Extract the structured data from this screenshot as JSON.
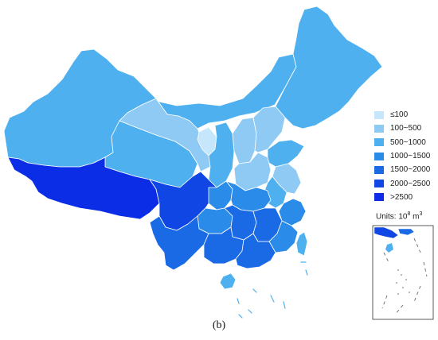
{
  "legend": {
    "classes": [
      {
        "label": "≤100",
        "color": "#c6e6fb"
      },
      {
        "label": "100~500",
        "color": "#8fcaf5"
      },
      {
        "label": "500~1000",
        "color": "#4fb0ef"
      },
      {
        "label": "1000~1500",
        "color": "#2b8be8"
      },
      {
        "label": "1500~2000",
        "color": "#1a6ae6"
      },
      {
        "label": "2000~2500",
        "color": "#1046e3"
      },
      {
        "label": ">2500",
        "color": "#0b2de6"
      }
    ],
    "units_prefix": "Units: 10",
    "units_exp": "8",
    "units_suffix": " m",
    "units_exp2": "3"
  },
  "caption": "(b)",
  "regions": [
    {
      "id": "northwest",
      "class": "500~1000"
    },
    {
      "id": "inner-mongolia",
      "class": "500~1000"
    },
    {
      "id": "northeast",
      "class": "500~1000"
    },
    {
      "id": "qinghai",
      "class": "500~1000"
    },
    {
      "id": "gansu",
      "class": "100~500"
    },
    {
      "id": "ningxia",
      "class": "≤100"
    },
    {
      "id": "shanxi",
      "class": "100~500"
    },
    {
      "id": "beijing",
      "class": "≤100"
    },
    {
      "id": "hebei",
      "class": "100~500"
    },
    {
      "id": "shandong",
      "class": "500~1000"
    },
    {
      "id": "henan",
      "class": "100~500"
    },
    {
      "id": "jiangsu",
      "class": "100~500"
    },
    {
      "id": "shaanxi",
      "class": "500~1000"
    },
    {
      "id": "tibet",
      "class": ">2500"
    },
    {
      "id": "sichuan",
      "class": "2000~2500"
    },
    {
      "id": "chongqing",
      "class": "1000~1500"
    },
    {
      "id": "hubei",
      "class": "1000~1500"
    },
    {
      "id": "anhui",
      "class": "500~1000"
    },
    {
      "id": "zhejiang",
      "class": "1000~1500"
    },
    {
      "id": "yunnan",
      "class": "1500~2000"
    },
    {
      "id": "guizhou",
      "class": "1000~1500"
    },
    {
      "id": "hunan",
      "class": "1500~2000"
    },
    {
      "id": "jiangxi",
      "class": "1500~2000"
    },
    {
      "id": "fujian",
      "class": "1000~1500"
    },
    {
      "id": "guangxi",
      "class": "1500~2000"
    },
    {
      "id": "guangdong",
      "class": "1500~2000"
    },
    {
      "id": "hainan",
      "class": "500~1000"
    },
    {
      "id": "taiwan",
      "class": "500~1000"
    }
  ]
}
